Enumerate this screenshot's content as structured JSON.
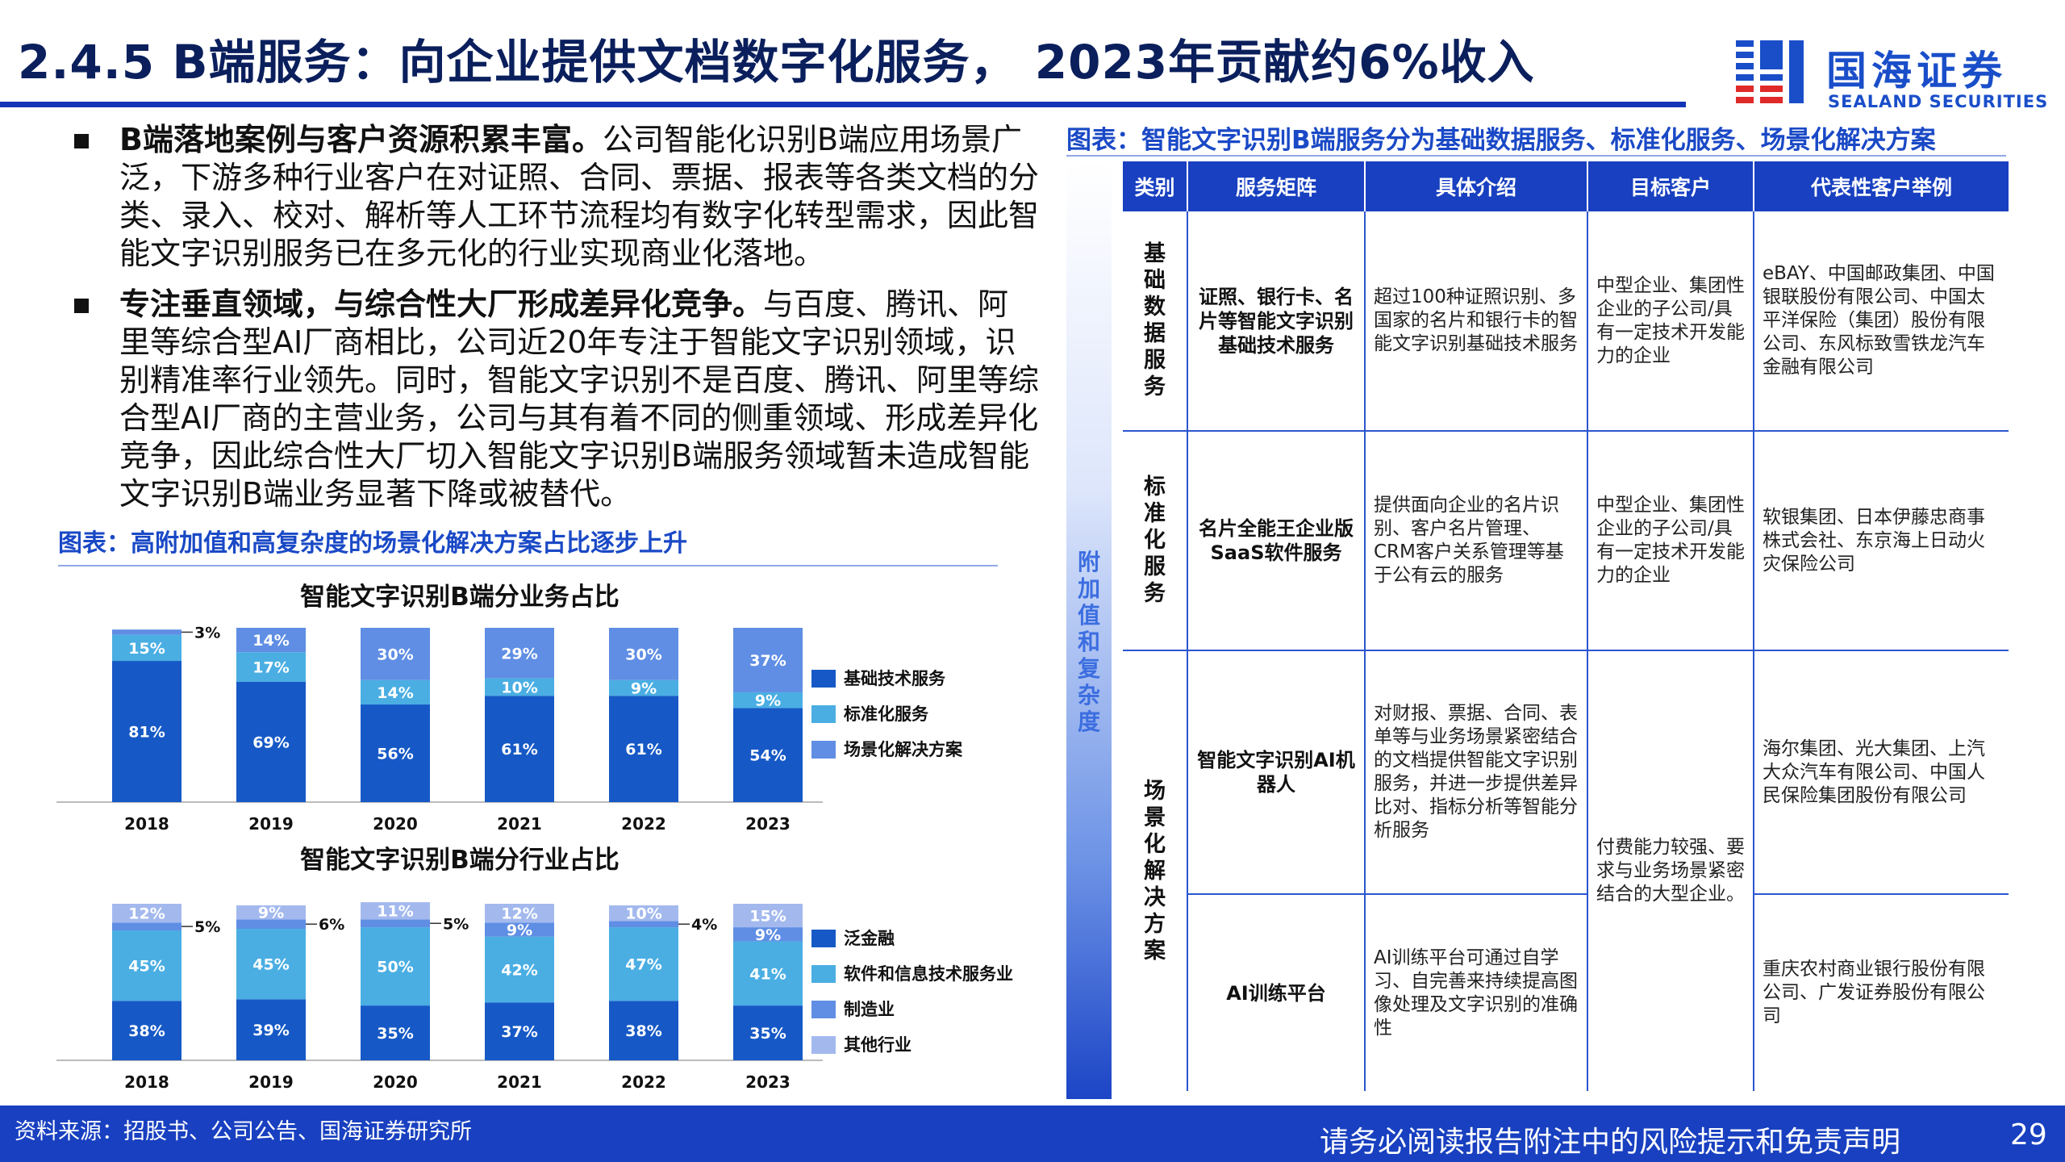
{
  "header": {
    "title": "2.4.5 B端服务：向企业提供文档数字化服务， 2023年贡献约6%收入",
    "logo_cn": "国海证券",
    "logo_en": "SEALAND SECURITIES"
  },
  "bullets": [
    {
      "bold": "B端落地案例与客户资源积累丰富。",
      "text": "公司智能化识别B端应用场景广泛，下游多种行业客户在对证照、合同、票据、报表等各类文档的分类、录入、校对、解析等人工环节流程均有数字化转型需求，因此智能文字识别服务已在多元化的行业实现商业化落地。"
    },
    {
      "bold": "专注垂直领域，与综合性大厂形成差异化竞争。",
      "text": "与百度、腾讯、阿里等综合型AI厂商相比，公司近20年专注于智能文字识别领域，识别精准率行业领先。同时，智能文字识别不是百度、腾讯、阿里等综合型AI厂商的主营业务，公司与其有着不同的侧重领域、形成差异化竞争，因此综合性大厂切入智能文字识别B端服务领域暂未造成智能文字识别B端业务显著下降或被替代。"
    }
  ],
  "left_caption": "图表：高附加值和高复杂度的场景化解决方案占比逐步上升",
  "chart_data": [
    {
      "type": "bar",
      "stacked": true,
      "percent": true,
      "title": "智能文字识别B端分业务占比",
      "categories": [
        "2018",
        "2019",
        "2020",
        "2021",
        "2022",
        "2023"
      ],
      "series": [
        {
          "name": "基础技术服务",
          "values": [
            81,
            69,
            56,
            61,
            61,
            54
          ],
          "color": "#1659c6"
        },
        {
          "name": "标准化服务",
          "values": [
            15,
            17,
            14,
            10,
            9,
            9
          ],
          "color": "#4aaee3"
        },
        {
          "name": "场景化解决方案",
          "values": [
            3,
            14,
            30,
            29,
            30,
            37
          ],
          "color": "#5f8ee4"
        }
      ],
      "legend": "right"
    },
    {
      "type": "bar",
      "stacked": true,
      "percent": true,
      "title": "智能文字识别B端分行业占比",
      "categories": [
        "2018",
        "2019",
        "2020",
        "2021",
        "2022",
        "2023"
      ],
      "series": [
        {
          "name": "泛金融",
          "values": [
            38,
            39,
            35,
            37,
            38,
            35
          ],
          "color": "#1659c6"
        },
        {
          "name": "软件和信息技术服务业",
          "values": [
            45,
            45,
            50,
            42,
            47,
            41
          ],
          "color": "#4aaee3"
        },
        {
          "name": "制造业",
          "values": [
            5,
            6,
            5,
            9,
            4,
            9
          ],
          "color": "#5f8ee4"
        },
        {
          "name": "其他行业",
          "values": [
            12,
            9,
            11,
            12,
            10,
            15
          ],
          "color": "#a3b9ee"
        }
      ],
      "legend": "right"
    }
  ],
  "right_caption": "图表：智能文字识别B端服务分为基础数据服务、标准化服务、场景化解决方案",
  "side_label": "附加值和复杂度",
  "table": {
    "headers": [
      "类别",
      "服务矩阵",
      "具体介绍",
      "目标客户",
      "代表性客户举例"
    ],
    "categories": [
      "基础数据服务",
      "标准化服务",
      "场景化解决方案"
    ],
    "rows": [
      {
        "matrix": "证照、银行卡、名片等智能文字识别基础技术服务",
        "intro": "超过100种证照识别、多国家的名片和银行卡的智能文字识别基础技术服务",
        "target": "中型企业、集团性企业的子公司/具有一定技术开发能力的企业",
        "clients": "eBAY、中国邮政集团、中国银联股份有限公司、中国太平洋保险（集团）股份有限公司、东风标致雪铁龙汽车金融有限公司"
      },
      {
        "matrix": "名片全能王企业版SaaS软件服务",
        "intro": "提供面向企业的名片识别、客户名片管理、CRM客户关系管理等基于公有云的服务",
        "target": "中型企业、集团性企业的子公司/具有一定技术开发能力的企业",
        "clients": "软银集团、日本伊藤忠商事株式会社、东京海上日动火灾保险公司"
      },
      {
        "matrix": "智能文字识别AI机器人",
        "intro": "对财报、票据、合同、表单等与业务场景紧密结合的文档提供智能文字识别服务，并进一步提供差异比对、指标分析等智能分析服务",
        "target": "付费能力较强、要求与业务场景紧密结合的大型企业。",
        "clients": "海尔集团、光大集团、上汽大众汽车有限公司、中国人民保险集团股份有限公司"
      },
      {
        "matrix": "AI训练平台",
        "intro": "AI训练平台可通过自学习、自完善来持续提高图像处理及文字识别的准确性",
        "clients": "重庆农村商业银行股份有限公司、广发证券股份有限公司"
      }
    ]
  },
  "footer": {
    "source": "资料来源：招股书、公司公告、国海证券研究所",
    "disclaimer": "请务必阅读报告附注中的风险提示和免责声明",
    "page": "29"
  }
}
